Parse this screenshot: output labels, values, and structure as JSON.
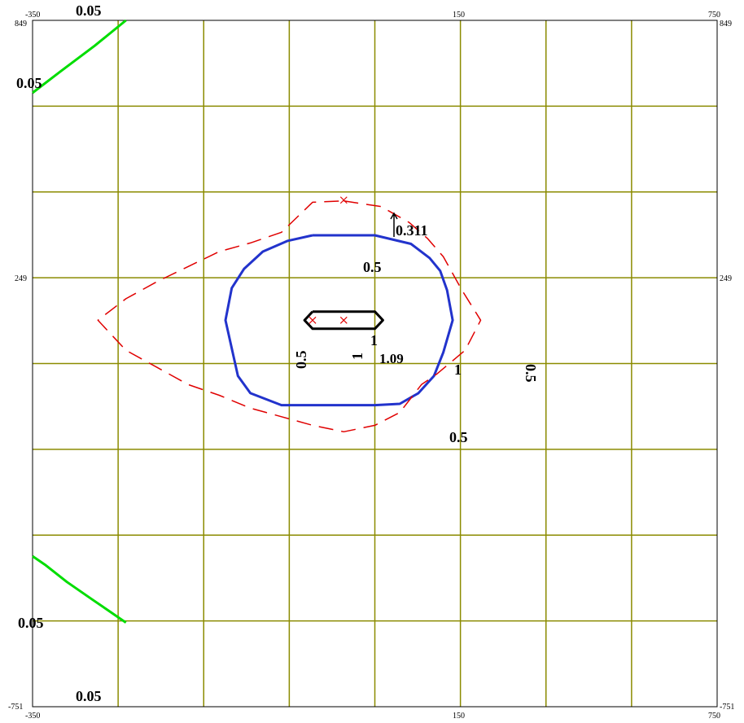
{
  "chart_data": {
    "type": "contour",
    "xlim": [
      -350,
      750
    ],
    "ylim": [
      -751,
      849
    ],
    "corner_labels": {
      "top_left_x": "-350",
      "top_mid_x": "150",
      "top_right_x": "750",
      "bottom_left_x": "-350",
      "bottom_mid_x": "150",
      "bottom_right_x": "750",
      "top_left_y": "849",
      "top_right_y": "849",
      "mid_left_y": "249",
      "mid_right_y": "249",
      "bottom_left_y": "-751",
      "bottom_right_y": "-751"
    },
    "contours": [
      {
        "color": "#00dd00",
        "labels": [
          "0.05",
          "0.05",
          "0.05",
          "0.05"
        ],
        "paths": [
          [
            [
              -200,
              849
            ],
            [
              -250,
              790
            ],
            [
              -305,
              730
            ],
            [
              -350,
              680
            ]
          ],
          [
            [
              -350,
              -400
            ],
            [
              -330,
              -420
            ],
            [
              -295,
              -460
            ],
            [
              -255,
              -500
            ],
            [
              -230,
              -525
            ],
            [
              -200,
              -555
            ]
          ]
        ]
      },
      {
        "color": "#2233cc",
        "labels": [
          "0.5",
          "0.5",
          "0.5",
          "0.5"
        ],
        "paths": [
          [
            [
              100,
              348
            ],
            [
              200,
              348
            ],
            [
              258,
              328
            ],
            [
              288,
              295
            ],
            [
              305,
              265
            ],
            [
              316,
              220
            ],
            [
              325,
              150
            ],
            [
              310,
              75
            ],
            [
              295,
              20
            ],
            [
              270,
              -20
            ],
            [
              240,
              -45
            ],
            [
              200,
              -48
            ],
            [
              100,
              -48
            ],
            [
              50,
              -48
            ],
            [
              0,
              -20
            ],
            [
              -20,
              20
            ],
            [
              -40,
              150
            ],
            [
              -30,
              225
            ],
            [
              -10,
              270
            ],
            [
              20,
              310
            ],
            [
              60,
              335
            ],
            [
              100,
              348
            ]
          ]
        ]
      },
      {
        "color": "#000000",
        "labels": [
          "1",
          "1"
        ],
        "paths": [
          [
            [
              100,
              170
            ],
            [
              200,
              170
            ],
            [
              213,
              150
            ],
            [
              200,
              130
            ],
            [
              100,
              130
            ],
            [
              87,
              150
            ],
            [
              100,
              170
            ]
          ]
        ]
      },
      {
        "color": "#e00000",
        "dashed": true,
        "labels": [
          "0.311"
        ],
        "paths": [
          [
            [
              150,
              428
            ],
            [
              210,
              415
            ],
            [
              255,
              378
            ],
            [
              285,
              340
            ],
            [
              310,
              298
            ],
            [
              340,
              220
            ],
            [
              370,
              150
            ],
            [
              345,
              80
            ],
            [
              300,
              25
            ],
            [
              275,
              0
            ],
            [
              240,
              -65
            ],
            [
              200,
              -95
            ],
            [
              150,
              -110
            ],
            [
              100,
              -95
            ],
            [
              50,
              -75
            ],
            [
              0,
              -55
            ],
            [
              -50,
              -25
            ],
            [
              -100,
              0
            ],
            [
              -150,
              40
            ],
            [
              -200,
              80
            ],
            [
              -245,
              150
            ],
            [
              -200,
              200
            ],
            [
              -150,
              240
            ],
            [
              -100,
              275
            ],
            [
              -50,
              310
            ],
            [
              0,
              330
            ],
            [
              50,
              355
            ],
            [
              100,
              425
            ],
            [
              150,
              428
            ]
          ]
        ]
      }
    ],
    "markers": [
      {
        "symbol": "x",
        "x": 100,
        "y": 150
      },
      {
        "symbol": "x",
        "x": 150,
        "y": 150
      },
      {
        "symbol": "x",
        "x": 150,
        "y": 430
      }
    ],
    "annotations": [
      "1.09",
      "0.311",
      "1",
      "1",
      "1"
    ]
  }
}
